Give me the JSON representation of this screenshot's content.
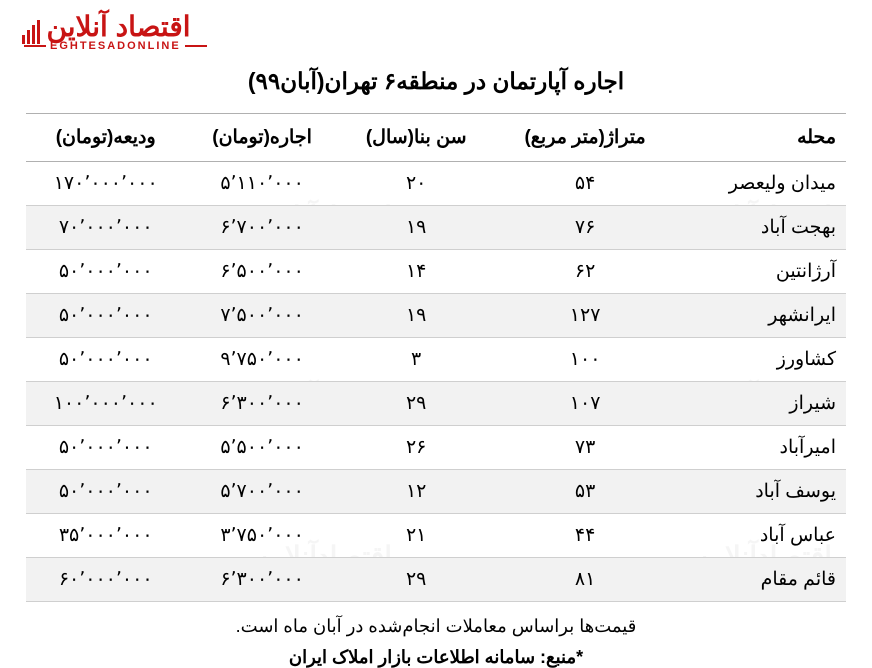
{
  "logo": {
    "persian": "اقتصاد آنلاین",
    "english": "EGHTESADONLINE"
  },
  "title": "اجاره آپارتمان در منطقه۶ تهران(آبان۹۹)",
  "columns": [
    "محله",
    "متراژ(متر مربع)",
    "سن بنا(سال)",
    "اجاره(تومان)",
    "ودیعه(تومان)"
  ],
  "rows": [
    [
      "میدان ولیعصر",
      "۵۴",
      "۲۰",
      "۵٬۱۱۰٬۰۰۰",
      "۱۷۰٬۰۰۰٬۰۰۰"
    ],
    [
      "بهجت آباد",
      "۷۶",
      "۱۹",
      "۶٬۷۰۰٬۰۰۰",
      "۷۰٬۰۰۰٬۰۰۰"
    ],
    [
      "آرژانتین",
      "۶۲",
      "۱۴",
      "۶٬۵۰۰٬۰۰۰",
      "۵۰٬۰۰۰٬۰۰۰"
    ],
    [
      "ایرانشهر",
      "۱۲۷",
      "۱۹",
      "۷٬۵۰۰٬۰۰۰",
      "۵۰٬۰۰۰٬۰۰۰"
    ],
    [
      "کشاورز",
      "۱۰۰",
      "۳",
      "۹٬۷۵۰٬۰۰۰",
      "۵۰٬۰۰۰٬۰۰۰"
    ],
    [
      "شیراز",
      "۱۰۷",
      "۲۹",
      "۶٬۳۰۰٬۰۰۰",
      "۱۰۰٬۰۰۰٬۰۰۰"
    ],
    [
      "امیرآباد",
      "۷۳",
      "۲۶",
      "۵٬۵۰۰٬۰۰۰",
      "۵۰٬۰۰۰٬۰۰۰"
    ],
    [
      "یوسف آباد",
      "۵۳",
      "۱۲",
      "۵٬۷۰۰٬۰۰۰",
      "۵۰٬۰۰۰٬۰۰۰"
    ],
    [
      "عباس آباد",
      "۴۴",
      "۲۱",
      "۳٬۷۵۰٬۰۰۰",
      "۳۵٬۰۰۰٬۰۰۰"
    ],
    [
      "قائم مقام",
      "۸۱",
      "۲۹",
      "۶٬۳۰۰٬۰۰۰",
      "۶۰٬۰۰۰٬۰۰۰"
    ]
  ],
  "note": "قیمت‌ها براساس معاملات انجام‌شده در آبان ماه است.",
  "source": "*منبع: سامانه اطلاعات بازار املاک ایران",
  "style": {
    "columns_count": 5,
    "col_widths_pct": [
      22,
      20,
      18,
      20,
      20
    ],
    "header_border_color": "#b0b0b0",
    "row_border_color": "#cfcfcf",
    "stripe_color": "#f2f2f2",
    "title_fontsize": 23,
    "body_fontsize": 19,
    "note_fontsize": 18,
    "logo_color": "#c81414",
    "background": "#ffffff"
  }
}
